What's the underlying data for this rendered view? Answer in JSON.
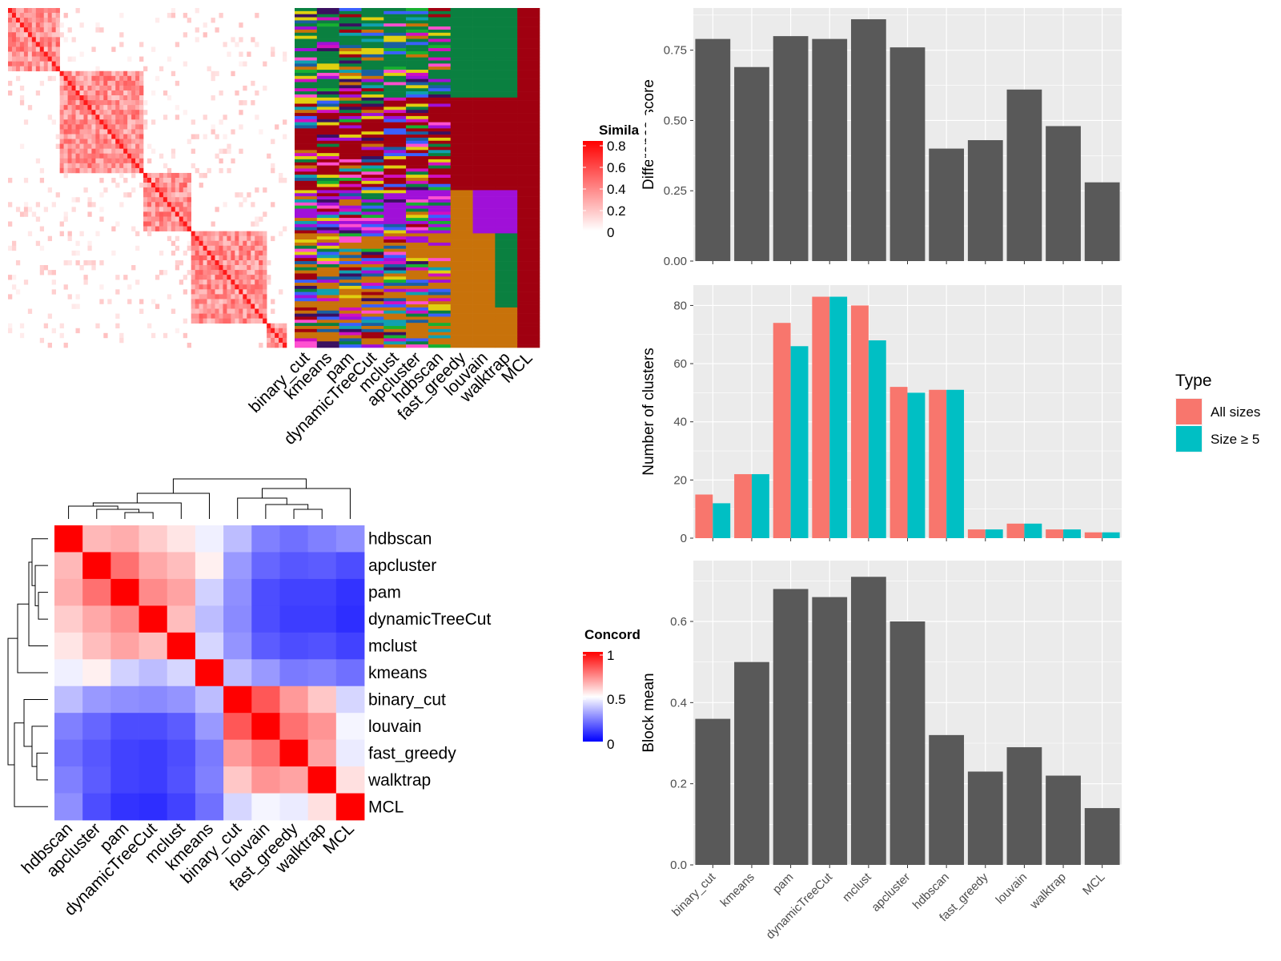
{
  "colors": {
    "panel_bg": "#ebebeb",
    "grid": "#ffffff",
    "bar": "#595959",
    "all_sizes": "#f8766d",
    "size_ge5": "#00bfc4",
    "heat_high": "#ff0000",
    "heat_mid": "#ffffff",
    "heat_low": "#0000ff",
    "cluster_palette": [
      "#0a8040",
      "#a00010",
      "#a010d8",
      "#c8720a",
      "#1a5fa0",
      "#d010c0",
      "#3a60ff",
      "#10a0b0",
      "#e0d010",
      "#3a1060",
      "#18b030",
      "#ff50d0"
    ]
  },
  "similarity_heatmap": {
    "legend_title": "Simila",
    "legend_ticks": [
      "0.8",
      "0.6",
      "0.4",
      "0.2",
      "0"
    ],
    "block_boundaries": [
      0,
      0.18,
      0.48,
      0.65,
      0.92,
      1.0
    ]
  },
  "cluster_annotation": {
    "columns": [
      "binary_cut",
      "kmeans",
      "pam",
      "dynamicTreeCut",
      "mclust",
      "apcluster",
      "hdbscan",
      "fast_greedy",
      "louvain",
      "walktrap",
      "MCL"
    ]
  },
  "concordance": {
    "legend_title": "Concord",
    "legend_ticks": [
      "1",
      "0.5",
      "0"
    ],
    "row_labels": [
      "hdbscan",
      "apcluster",
      "pam",
      "dynamicTreeCut",
      "mclust",
      "kmeans",
      "binary_cut",
      "louvain",
      "fast_greedy",
      "walktrap",
      "MCL"
    ],
    "col_labels": [
      "hdbscan",
      "apcluster",
      "pam",
      "dynamicTreeCut",
      "mclust",
      "kmeans",
      "binary_cut",
      "louvain",
      "fast_greedy",
      "walktrap",
      "MCL"
    ],
    "matrix": [
      [
        1.0,
        0.64,
        0.66,
        0.6,
        0.55,
        0.47,
        0.37,
        0.25,
        0.22,
        0.25,
        0.28
      ],
      [
        0.64,
        1.0,
        0.78,
        0.67,
        0.63,
        0.53,
        0.3,
        0.2,
        0.17,
        0.18,
        0.15
      ],
      [
        0.66,
        0.78,
        1.0,
        0.73,
        0.68,
        0.41,
        0.28,
        0.15,
        0.13,
        0.13,
        0.1
      ],
      [
        0.6,
        0.67,
        0.73,
        1.0,
        0.63,
        0.37,
        0.27,
        0.15,
        0.12,
        0.12,
        0.09
      ],
      [
        0.55,
        0.63,
        0.68,
        0.63,
        1.0,
        0.42,
        0.29,
        0.18,
        0.15,
        0.16,
        0.13
      ],
      [
        0.47,
        0.53,
        0.41,
        0.37,
        0.42,
        1.0,
        0.37,
        0.3,
        0.24,
        0.25,
        0.22
      ],
      [
        0.37,
        0.3,
        0.28,
        0.27,
        0.29,
        0.37,
        1.0,
        0.83,
        0.7,
        0.61,
        0.42
      ],
      [
        0.25,
        0.2,
        0.15,
        0.15,
        0.18,
        0.3,
        0.83,
        1.0,
        0.78,
        0.71,
        0.48
      ],
      [
        0.22,
        0.17,
        0.13,
        0.12,
        0.15,
        0.24,
        0.7,
        0.78,
        1.0,
        0.68,
        0.46
      ],
      [
        0.25,
        0.18,
        0.13,
        0.12,
        0.16,
        0.25,
        0.61,
        0.71,
        0.68,
        1.0,
        0.56
      ],
      [
        0.28,
        0.15,
        0.1,
        0.09,
        0.13,
        0.22,
        0.42,
        0.48,
        0.46,
        0.56,
        1.0
      ]
    ]
  },
  "chart_data": [
    {
      "type": "bar",
      "categories": [
        "binary_cut",
        "kmeans",
        "pam",
        "dynamicTreeCut",
        "mclust",
        "apcluster",
        "hdbscan",
        "fast_greedy",
        "louvain",
        "walktrap",
        "MCL"
      ],
      "values": [
        0.79,
        0.69,
        0.8,
        0.79,
        0.86,
        0.76,
        0.4,
        0.43,
        0.61,
        0.48,
        0.28
      ],
      "ylabel": "Difference score",
      "ylim": [
        0,
        0.9
      ],
      "yticks": [
        0,
        0.25,
        0.5,
        0.75
      ],
      "ytick_labels": [
        "0.00",
        "0.25",
        "0.50",
        "0.75"
      ],
      "show_x_labels": false,
      "grid": true
    },
    {
      "type": "bar",
      "categories": [
        "binary_cut",
        "kmeans",
        "pam",
        "dynamicTreeCut",
        "mclust",
        "apcluster",
        "hdbscan",
        "fast_greedy",
        "louvain",
        "walktrap",
        "MCL"
      ],
      "series": [
        {
          "name": "All sizes",
          "values": [
            15,
            22,
            74,
            83,
            80,
            52,
            51,
            3,
            5,
            3,
            2
          ]
        },
        {
          "name": "Size ≥ 5",
          "values": [
            12,
            22,
            66,
            83,
            68,
            50,
            51,
            3,
            5,
            3,
            2
          ]
        }
      ],
      "ylabel": "Number of clusters",
      "ylim": [
        0,
        87
      ],
      "yticks": [
        0,
        20,
        40,
        60,
        80
      ],
      "ytick_labels": [
        "0",
        "20",
        "40",
        "60",
        "80"
      ],
      "legend_title": "Type",
      "legend_position": "right",
      "show_x_labels": false,
      "grid": true
    },
    {
      "type": "bar",
      "categories": [
        "binary_cut",
        "kmeans",
        "pam",
        "dynamicTreeCut",
        "mclust",
        "apcluster",
        "hdbscan",
        "fast_greedy",
        "louvain",
        "walktrap",
        "MCL"
      ],
      "values": [
        0.36,
        0.5,
        0.68,
        0.66,
        0.71,
        0.6,
        0.32,
        0.23,
        0.29,
        0.22,
        0.14
      ],
      "ylabel": "Block mean",
      "ylim": [
        0,
        0.75
      ],
      "yticks": [
        0,
        0.2,
        0.4,
        0.6
      ],
      "ytick_labels": [
        "0.0",
        "0.2",
        "0.4",
        "0.6"
      ],
      "show_x_labels": true,
      "grid": true
    }
  ]
}
